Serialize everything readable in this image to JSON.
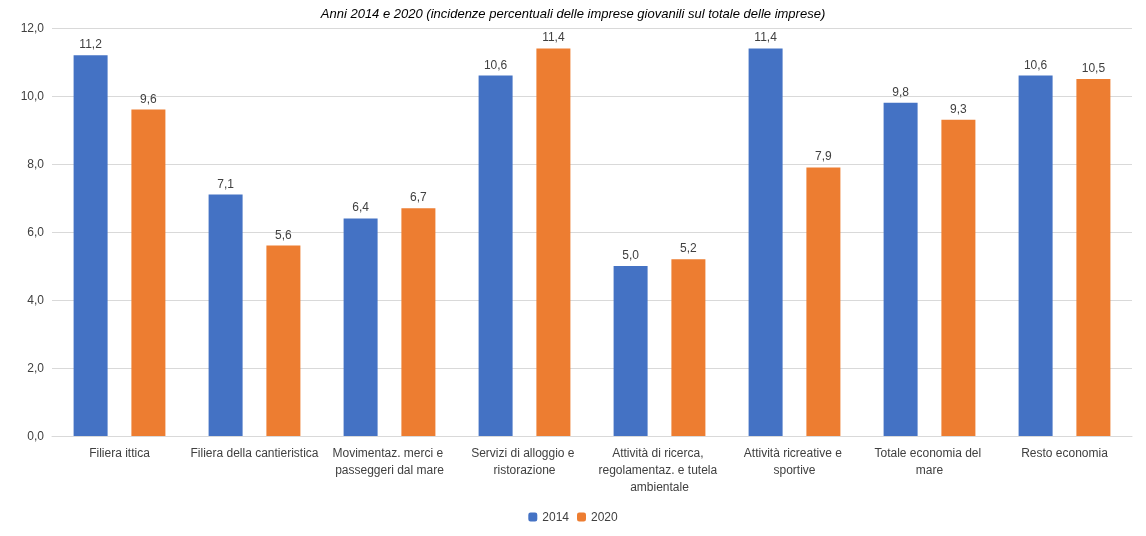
{
  "chart_data": {
    "type": "bar",
    "title": "Anni 2014 e 2020 (incidenze percentuali delle imprese giovanili sul totale delle imprese)",
    "categories": [
      "Filiera ittica",
      "Filiera della cantieristica",
      "Movimentaz. merci e passeggeri dal mare",
      "Servizi di alloggio e ristorazione",
      "Attività di ricerca, regolamentaz. e tutela ambientale",
      "Attività ricreative e sportive",
      "Totale economia del mare",
      "Resto economia"
    ],
    "series": [
      {
        "name": "2014",
        "color": "#4472c4",
        "values": [
          11.2,
          7.1,
          6.4,
          10.6,
          5.0,
          11.4,
          9.8,
          10.6
        ],
        "value_labels": [
          "11,2",
          "7,1",
          "6,4",
          "10,6",
          "5,0",
          "11,4",
          "9,8",
          "10,6"
        ]
      },
      {
        "name": "2020",
        "color": "#ed7d31",
        "values": [
          9.6,
          5.6,
          6.7,
          11.4,
          5.2,
          7.9,
          9.3,
          10.5
        ],
        "value_labels": [
          "9,6",
          "5,6",
          "6,7",
          "11,4",
          "5,2",
          "7,9",
          "9,3",
          "10,5"
        ]
      }
    ],
    "ylim": [
      0,
      12
    ],
    "yticks": [
      {
        "value": 0,
        "label": "0,0"
      },
      {
        "value": 2,
        "label": "2,0"
      },
      {
        "value": 4,
        "label": "4,0"
      },
      {
        "value": 6,
        "label": "6,0"
      },
      {
        "value": 8,
        "label": "8,0"
      },
      {
        "value": 10,
        "label": "10,0"
      },
      {
        "value": 12,
        "label": "12,0"
      }
    ],
    "grid": "y",
    "legend": "bottom"
  }
}
